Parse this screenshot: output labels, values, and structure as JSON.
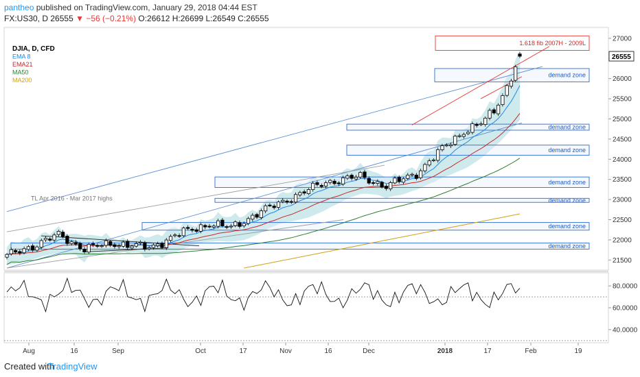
{
  "header": {
    "author": "pantheo",
    "published_text": "published on TradingView.com, January 29, 2018 04:44 EST",
    "symbol": "FX:US30, D",
    "last": "26555",
    "change": "−56 (−0.21%)",
    "ohlc": "O:26612 H:26699 L:26549 C:26555"
  },
  "footer": {
    "created_with": "Created with",
    "logo": "TradingView"
  },
  "chart_data": {
    "type": "candlestick",
    "legend": [
      {
        "name": "DJIA, D, CFD",
        "color": "#000000"
      },
      {
        "name": "EMA 8",
        "color": "#1e88e5"
      },
      {
        "name": "EMA21",
        "color": "#c62828"
      },
      {
        "name": "MA50",
        "color": "#2e7d32"
      },
      {
        "name": "MA200",
        "color": "#d4a017"
      }
    ],
    "y_ticks": [
      21500,
      22000,
      22500,
      23000,
      23500,
      24000,
      24500,
      25000,
      25500,
      26000,
      26500,
      27000
    ],
    "ylim": [
      21250,
      27270
    ],
    "x_ticks": [
      "Aug",
      "16",
      "Sep",
      "Oct",
      "17",
      "Nov",
      "16",
      "Dec",
      "2018",
      "17",
      "Feb",
      "19"
    ],
    "last_price_label": "26555",
    "price_start": 21600,
    "price_end": 26555,
    "demand_zones": [
      {
        "label": "demand zone",
        "low": 25920,
        "high": 26250
      },
      {
        "label": "demand zone",
        "low": 24720,
        "high": 24870
      },
      {
        "label": "demand zone",
        "low": 24100,
        "high": 24350
      },
      {
        "label": "demand zone",
        "low": 23300,
        "high": 23560
      },
      {
        "label": "demand zone",
        "low": 22930,
        "high": 23030
      },
      {
        "label": "demand zone",
        "low": 22240,
        "high": 22430
      },
      {
        "label": "demand zone",
        "low": 21770,
        "high": 21920
      }
    ],
    "fib_zone": {
      "label": "1.618 fib 2007H - 2009L",
      "low": 26700,
      "high": 27060
    },
    "annotation": "TL Apr 2016 - Mar 2017 highs",
    "oscillator": {
      "ticks": [
        "80.0000",
        "60.0000",
        "40.0000"
      ],
      "tick_values": [
        80,
        60,
        40
      ],
      "ylim": [
        28,
        92
      ],
      "reference_levels": [
        70,
        30
      ]
    }
  }
}
